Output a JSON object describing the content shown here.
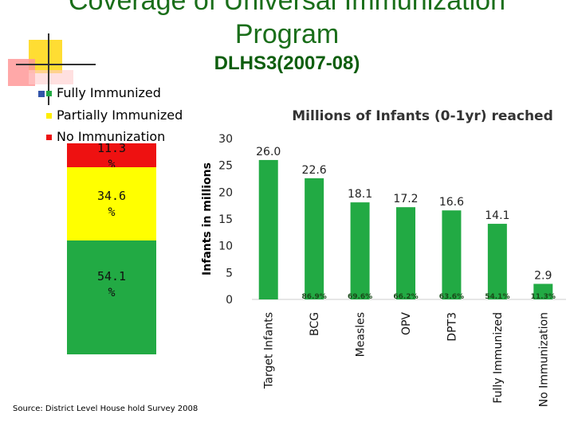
{
  "slide": {
    "title_line1": "Coverage of Universal Immunization",
    "title_line2": "Program",
    "subtitle": "DLHS3(2007-08)",
    "source": "Source: District Level House hold Survey 2008"
  },
  "legend": [
    {
      "label": "Fully Immunized",
      "color": "#22aa44"
    },
    {
      "label": "Partially Immunized",
      "color": "#ffee00"
    },
    {
      "label": "No Immunization",
      "color": "#ee1111"
    }
  ],
  "stacked": {
    "segments": [
      {
        "label": "11.3\n%",
        "value": 11.3,
        "color": "#ee1111"
      },
      {
        "label": "34.6\n%",
        "value": 34.6,
        "color": "#ffff00"
      },
      {
        "label": "54.1\n%",
        "value": 54.1,
        "color": "#22aa44"
      }
    ]
  },
  "chart_data": {
    "type": "bar",
    "title": "Millions of Infants (0-1yr) reached",
    "ylabel": "Infants in millions",
    "xlabel": "",
    "ylim": [
      0,
      30
    ],
    "yticks": [
      0,
      5,
      10,
      15,
      20,
      25,
      30
    ],
    "categories": [
      "Target Infants",
      "BCG",
      "Measles",
      "OPV",
      "DPT3",
      "Fully Immunized",
      "No Immunization"
    ],
    "values": [
      26.0,
      22.6,
      18.1,
      17.2,
      16.6,
      14.1,
      2.9
    ],
    "value_labels": [
      "26.0",
      "22.6",
      "18.1",
      "17.2",
      "16.6",
      "14.1",
      "2.9"
    ],
    "percent_labels": [
      "",
      "86.9%",
      "69.6%",
      "66.2%",
      "63.6%",
      "54.1%",
      "11.3%"
    ],
    "bar_color": "#22aa44",
    "grid": false
  }
}
